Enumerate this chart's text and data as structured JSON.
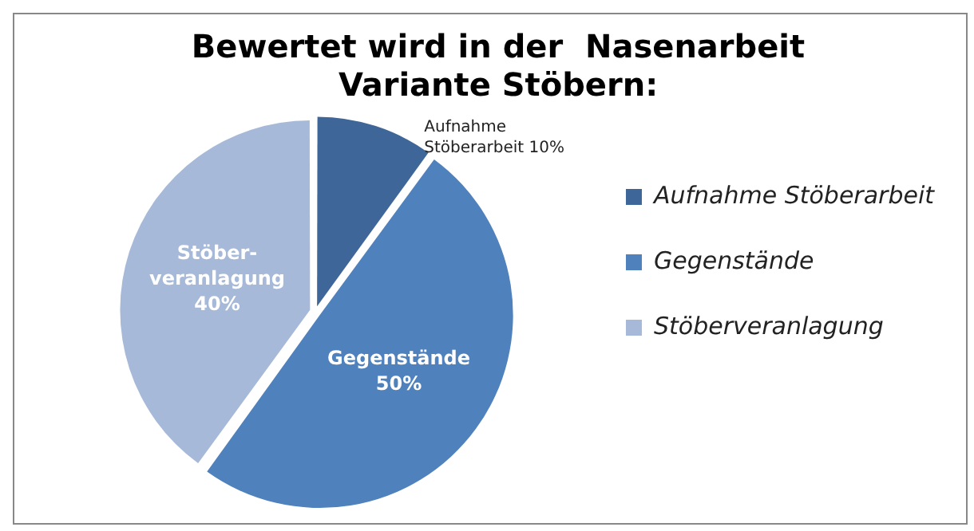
{
  "chart_data": {
    "type": "pie",
    "title": "Bewertet wird in der  Nasenarbeit\nVariante Stöbern:",
    "categories": [
      "Aufnahme Stöberarbeit",
      "Gegenstände",
      "Stöberveranlagung"
    ],
    "values": [
      10,
      50,
      40
    ],
    "colors": [
      "#3f6698",
      "#4f81bd",
      "#a7b9d8"
    ],
    "value_labels": [
      "Aufnahme\nStöberarbeit 10%",
      "Gegenstände\n50%",
      "Stöber-\nveranlagung\n40%"
    ],
    "legend": "right"
  }
}
